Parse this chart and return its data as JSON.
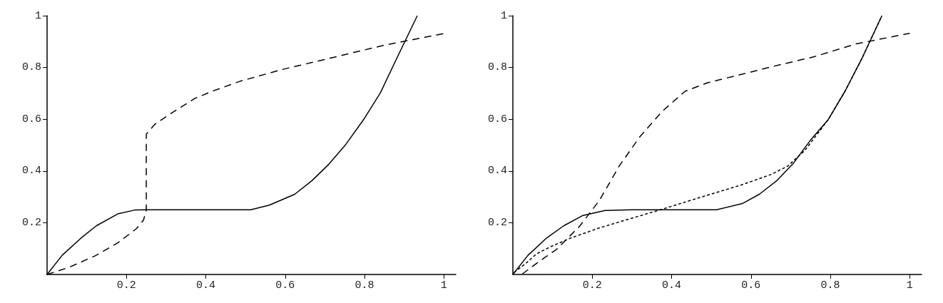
{
  "chart_data": [
    {
      "type": "line",
      "xlim": [
        0,
        1.03
      ],
      "ylim": [
        0,
        1
      ],
      "xticks": [
        0.2,
        0.4,
        0.6,
        0.8,
        1
      ],
      "yticks": [
        0.2,
        0.4,
        0.6,
        0.8,
        1
      ],
      "grid": false,
      "marker": "none",
      "series": [
        {
          "color": "#000000",
          "line_style": "solid",
          "x": [
            0,
            0.038,
            0.085,
            0.124,
            0.178,
            0.221,
            0.25,
            0.35,
            0.45,
            0.513,
            0.56,
            0.624,
            0.667,
            0.71,
            0.753,
            0.797,
            0.84,
            0.883,
            0.933
          ],
          "values": [
            0,
            0.074,
            0.14,
            0.188,
            0.234,
            0.249,
            0.25,
            0.25,
            0.25,
            0.25,
            0.268,
            0.31,
            0.362,
            0.426,
            0.503,
            0.597,
            0.702,
            0.841,
            1.0
          ]
        },
        {
          "color": "#000000",
          "line_style": "dashed",
          "x": [
            0,
            0.056,
            0.121,
            0.178,
            0.225,
            0.243,
            0.25,
            0.25,
            0.272,
            0.315,
            0.372,
            0.416,
            0.487,
            0.595,
            0.703,
            0.847,
            1.0
          ],
          "values": [
            0,
            0.028,
            0.072,
            0.122,
            0.177,
            0.21,
            0.249,
            0.542,
            0.581,
            0.625,
            0.68,
            0.708,
            0.747,
            0.793,
            0.832,
            0.885,
            0.931
          ]
        }
      ]
    },
    {
      "type": "line",
      "xlim": [
        0,
        1.03
      ],
      "ylim": [
        0,
        1
      ],
      "xticks": [
        0.2,
        0.4,
        0.6,
        0.8,
        1
      ],
      "yticks": [
        0.2,
        0.4,
        0.6,
        0.8,
        1
      ],
      "grid": false,
      "marker": "none",
      "series": [
        {
          "color": "#000000",
          "line_style": "solid",
          "x": [
            0,
            0.038,
            0.085,
            0.128,
            0.175,
            0.232,
            0.3,
            0.4,
            0.513,
            0.578,
            0.621,
            0.664,
            0.707,
            0.75,
            0.794,
            0.837,
            0.88,
            0.93
          ],
          "values": [
            0,
            0.074,
            0.141,
            0.188,
            0.227,
            0.247,
            0.25,
            0.25,
            0.25,
            0.274,
            0.31,
            0.361,
            0.43,
            0.519,
            0.597,
            0.708,
            0.836,
            1.0
          ]
        },
        {
          "color": "#000000",
          "line_style": "dashed",
          "x": [
            0.024,
            0.063,
            0.11,
            0.168,
            0.218,
            0.268,
            0.319,
            0.376,
            0.434,
            0.491,
            0.578,
            0.65,
            0.758,
            0.865,
            1.0
          ],
          "values": [
            0.002,
            0.047,
            0.097,
            0.186,
            0.286,
            0.419,
            0.53,
            0.63,
            0.708,
            0.741,
            0.774,
            0.802,
            0.841,
            0.891,
            0.932
          ]
        },
        {
          "color": "#000000",
          "line_style": "dotted",
          "x": [
            0.003,
            0.031,
            0.06,
            0.096,
            0.146,
            0.218,
            0.29,
            0.376,
            0.47,
            0.578,
            0.65,
            0.693,
            0.736,
            0.794,
            0.837,
            0.88,
            0.93
          ],
          "values": [
            0.008,
            0.041,
            0.08,
            0.108,
            0.141,
            0.18,
            0.213,
            0.252,
            0.297,
            0.347,
            0.386,
            0.419,
            0.48,
            0.597,
            0.708,
            0.836,
            1.0
          ]
        }
      ]
    }
  ]
}
